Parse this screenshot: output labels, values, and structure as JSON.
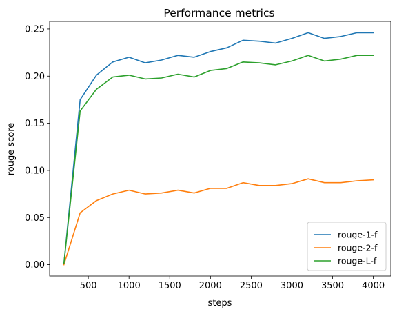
{
  "chart_data": {
    "type": "line",
    "title": "Performance metrics",
    "xlabel": "steps",
    "ylabel": "rouge score",
    "xlim": [
      25,
      4215
    ],
    "ylim": [
      -0.012,
      0.258
    ],
    "xticks": [
      500,
      1000,
      1500,
      2000,
      2500,
      3000,
      3500,
      4000
    ],
    "yticks": [
      0.0,
      0.05,
      0.1,
      0.15,
      0.2,
      0.25
    ],
    "ytick_labels": [
      "0.00",
      "0.05",
      "0.10",
      "0.15",
      "0.20",
      "0.25"
    ],
    "grid": false,
    "legend_position": "lower-right",
    "x": [
      200,
      400,
      600,
      800,
      1000,
      1200,
      1400,
      1600,
      1800,
      2000,
      2200,
      2400,
      2600,
      2800,
      3000,
      3200,
      3400,
      3600,
      3800,
      4000
    ],
    "series": [
      {
        "name": "rouge-1-f",
        "color": "#1f77b4",
        "values": [
          0.001,
          0.175,
          0.201,
          0.215,
          0.22,
          0.214,
          0.217,
          0.222,
          0.22,
          0.226,
          0.23,
          0.238,
          0.237,
          0.235,
          0.24,
          0.246,
          0.24,
          0.242,
          0.246,
          0.246
        ]
      },
      {
        "name": "rouge-2-f",
        "color": "#ff7f0e",
        "values": [
          0.0,
          0.055,
          0.068,
          0.075,
          0.079,
          0.075,
          0.076,
          0.079,
          0.076,
          0.081,
          0.081,
          0.087,
          0.084,
          0.084,
          0.086,
          0.091,
          0.087,
          0.087,
          0.089,
          0.09
        ]
      },
      {
        "name": "rouge-L-f",
        "color": "#2ca02c",
        "values": [
          0.001,
          0.163,
          0.186,
          0.199,
          0.201,
          0.197,
          0.198,
          0.202,
          0.199,
          0.206,
          0.208,
          0.215,
          0.214,
          0.212,
          0.216,
          0.222,
          0.216,
          0.218,
          0.222,
          0.222
        ]
      }
    ]
  }
}
